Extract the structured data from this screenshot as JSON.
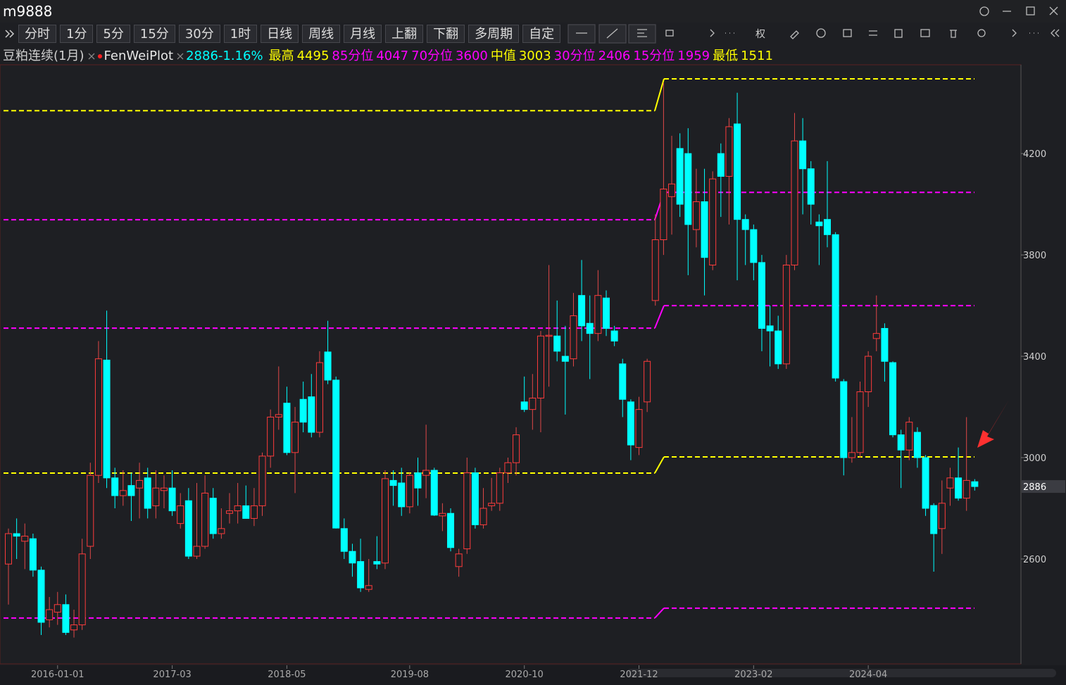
{
  "window": {
    "symbol": "m9888"
  },
  "toolbar": {
    "buttons": [
      "分时",
      "1分",
      "5分",
      "15分",
      "30分",
      "1时",
      "日线",
      "周线",
      "月线",
      "上翻",
      "下翻",
      "多周期",
      "自定"
    ],
    "rights": "权"
  },
  "chart_data": {
    "type": "candlestick",
    "name": "豆粕连续(1月)",
    "indicator": "FenWeiPlot",
    "last": 2886,
    "change": "-1.16%",
    "up_color": "#ff3b3b",
    "down_color": "#00ffff",
    "categories": [
      null,
      null,
      null,
      null,
      null,
      null,
      "2016-01-01",
      null,
      null,
      null,
      null,
      null,
      null,
      null,
      null,
      null,
      null,
      null,
      null,
      null,
      "2017-03",
      null,
      null,
      null,
      null,
      null,
      null,
      null,
      null,
      null,
      null,
      null,
      null,
      null,
      "2018-05",
      null,
      null,
      null,
      null,
      null,
      null,
      null,
      null,
      null,
      null,
      null,
      null,
      null,
      null,
      "2019-08",
      null,
      null,
      null,
      null,
      null,
      null,
      null,
      null,
      null,
      null,
      null,
      null,
      null,
      "2020-10",
      null,
      null,
      null,
      null,
      null,
      null,
      null,
      null,
      null,
      null,
      null,
      null,
      null,
      "2021-12",
      null,
      null,
      null,
      null,
      null,
      null,
      null,
      null,
      null,
      null,
      null,
      null,
      null,
      "2023-02",
      null,
      null,
      null,
      null,
      null,
      null,
      null,
      null,
      null,
      null,
      null,
      null,
      null,
      "2024-04",
      null,
      null,
      null,
      null,
      null,
      null,
      null,
      null,
      null,
      null,
      null,
      null,
      null
    ],
    "candles": [
      [
        2580,
        2720,
        2420,
        2700
      ],
      [
        2700,
        2760,
        2600,
        2690
      ],
      [
        2670,
        2740,
        2560,
        2690
      ],
      [
        2680,
        2700,
        2530,
        2556
      ],
      [
        2556,
        2570,
        2300,
        2350
      ],
      [
        2360,
        2450,
        2330,
        2400
      ],
      [
        2390,
        2470,
        2340,
        2420
      ],
      [
        2420,
        2460,
        2300,
        2310
      ],
      [
        2320,
        2400,
        2290,
        2340
      ],
      [
        2340,
        2680,
        2320,
        2620
      ],
      [
        2650,
        2980,
        2600,
        2930
      ],
      [
        2930,
        3460,
        2900,
        3390
      ],
      [
        3385,
        3580,
        2880,
        2920
      ],
      [
        2920,
        2960,
        2800,
        2850
      ],
      [
        2850,
        2950,
        2810,
        2870
      ],
      [
        2890,
        2940,
        2750,
        2850
      ],
      [
        2880,
        2980,
        2760,
        2910
      ],
      [
        2920,
        2960,
        2760,
        2800
      ],
      [
        2810,
        2950,
        2760,
        2880
      ],
      [
        2870,
        2930,
        2800,
        2880
      ],
      [
        2880,
        2950,
        2770,
        2790
      ],
      [
        2740,
        2860,
        2720,
        2810
      ],
      [
        2830,
        2880,
        2600,
        2611
      ],
      [
        2611,
        2900,
        2600,
        2650
      ],
      [
        2650,
        2930,
        2640,
        2860
      ],
      [
        2840,
        2880,
        2680,
        2700
      ],
      [
        2700,
        2800,
        2680,
        2720
      ],
      [
        2780,
        2860,
        2740,
        2790
      ],
      [
        2790,
        2900,
        2740,
        2810
      ],
      [
        2810,
        2890,
        2760,
        2760
      ],
      [
        2760,
        2880,
        2730,
        2810
      ],
      [
        2810,
        3020,
        2770,
        3006
      ],
      [
        3006,
        3190,
        2960,
        3160
      ],
      [
        3160,
        3360,
        3110,
        3170
      ],
      [
        3215,
        3280,
        3010,
        3020
      ],
      [
        3020,
        3200,
        2860,
        3140
      ],
      [
        3230,
        3300,
        3100,
        3140
      ],
      [
        3240,
        3330,
        3080,
        3100
      ],
      [
        3100,
        3420,
        3080,
        3375
      ],
      [
        3417,
        3540,
        3290,
        3306
      ],
      [
        3306,
        3320,
        2720,
        2722
      ],
      [
        2720,
        2760,
        2600,
        2630
      ],
      [
        2630,
        2660,
        2530,
        2584
      ],
      [
        2590,
        2680,
        2470,
        2486
      ],
      [
        2480,
        2600,
        2470,
        2495
      ],
      [
        2590,
        2690,
        2560,
        2580
      ],
      [
        2584,
        2950,
        2560,
        2917
      ],
      [
        2910,
        2950,
        2810,
        2890
      ],
      [
        2900,
        2960,
        2770,
        2806
      ],
      [
        2806,
        2940,
        2780,
        2930
      ],
      [
        2940,
        3000,
        2810,
        2880
      ],
      [
        2930,
        3130,
        2840,
        2950
      ],
      [
        2950,
        2960,
        2770,
        2773
      ],
      [
        2770,
        2820,
        2710,
        2780
      ],
      [
        2780,
        2800,
        2630,
        2645
      ],
      [
        2570,
        2640,
        2530,
        2620
      ],
      [
        2640,
        3000,
        2620,
        2940
      ],
      [
        2940,
        2960,
        2720,
        2735
      ],
      [
        2735,
        2880,
        2720,
        2800
      ],
      [
        2810,
        2920,
        2790,
        2820
      ],
      [
        2820,
        2960,
        2790,
        2940
      ],
      [
        2940,
        3000,
        2900,
        2980
      ],
      [
        2980,
        3120,
        2930,
        3090
      ],
      [
        3220,
        3320,
        3180,
        3190
      ],
      [
        3190,
        3330,
        3110,
        3235
      ],
      [
        3235,
        3500,
        3100,
        3480
      ],
      [
        3480,
        3760,
        3280,
        3483
      ],
      [
        3480,
        3620,
        3380,
        3420
      ],
      [
        3400,
        3520,
        3170,
        3380
      ],
      [
        3390,
        3650,
        3360,
        3560
      ],
      [
        3640,
        3780,
        3460,
        3520
      ],
      [
        3530,
        3640,
        3310,
        3490
      ],
      [
        3490,
        3740,
        3460,
        3640
      ],
      [
        3630,
        3660,
        3480,
        3510
      ],
      [
        3500,
        3520,
        3440,
        3460
      ],
      [
        3370,
        3390,
        3160,
        3230
      ],
      [
        3220,
        3230,
        2990,
        3050
      ],
      [
        3040,
        3240,
        3010,
        3190
      ],
      [
        3220,
        3390,
        3180,
        3380
      ],
      [
        3620,
        3960,
        3600,
        3860
      ],
      [
        3860,
        4480,
        3800,
        4060
      ],
      [
        4030,
        4270,
        3880,
        4080
      ],
      [
        4220,
        4280,
        3950,
        4000
      ],
      [
        4200,
        4300,
        3720,
        3920
      ],
      [
        3900,
        4140,
        3830,
        4010
      ],
      [
        4010,
        4140,
        3640,
        3790
      ],
      [
        3760,
        4130,
        3740,
        4100
      ],
      [
        4200,
        4240,
        3950,
        4110
      ],
      [
        4110,
        4340,
        3920,
        4306
      ],
      [
        4317,
        4440,
        3700,
        3940
      ],
      [
        3940,
        3960,
        3760,
        3900
      ],
      [
        3900,
        3920,
        3700,
        3770
      ],
      [
        3770,
        3800,
        3420,
        3510
      ],
      [
        3520,
        3600,
        3360,
        3500
      ],
      [
        3500,
        3560,
        3350,
        3370
      ],
      [
        3370,
        3800,
        3350,
        3760
      ],
      [
        3760,
        4360,
        3740,
        4250
      ],
      [
        4250,
        4340,
        3960,
        4140
      ],
      [
        4140,
        4170,
        3920,
        4000
      ],
      [
        3930,
        3960,
        3760,
        3915
      ],
      [
        3940,
        4170,
        3830,
        3880
      ],
      [
        3880,
        3890,
        3300,
        3314
      ],
      [
        3300,
        3310,
        2930,
        3000
      ],
      [
        3000,
        3160,
        2980,
        3020
      ],
      [
        3020,
        3300,
        3000,
        3260
      ],
      [
        3260,
        3420,
        3200,
        3400
      ],
      [
        3470,
        3640,
        3420,
        3490
      ],
      [
        3510,
        3530,
        3300,
        3380
      ],
      [
        3375,
        3380,
        3080,
        3090
      ],
      [
        3090,
        3110,
        2880,
        3030
      ],
      [
        3030,
        3160,
        2990,
        3140
      ],
      [
        3100,
        3120,
        2960,
        3000
      ],
      [
        3000,
        3010,
        2770,
        2800
      ],
      [
        2811,
        2820,
        2550,
        2700
      ],
      [
        2720,
        2910,
        2620,
        2820
      ],
      [
        2880,
        2960,
        2810,
        2920
      ],
      [
        2920,
        3040,
        2830,
        2840
      ],
      [
        2840,
        3160,
        2790,
        2910
      ],
      [
        2905,
        2915,
        2870,
        2886
      ]
    ],
    "levels": [
      {
        "name": "最高",
        "color": "#ffff00",
        "values": [
          4369,
          4495
        ]
      },
      {
        "name": "85分位",
        "color": "#ff00ff",
        "values": [
          3939,
          4047
        ]
      },
      {
        "name": "70分位",
        "color": "#ff00ff",
        "values": [
          3511,
          3600
        ]
      },
      {
        "name": "中值",
        "color": "#ffff00",
        "values": [
          2939,
          3003
        ]
      },
      {
        "name": "30分位",
        "color": "#ff00ff",
        "values": [
          2367,
          2406
        ]
      },
      {
        "name": "15分位",
        "color": "#ff00ff",
        "values": [
          null,
          1959
        ]
      },
      {
        "name": "最低",
        "color": "#ffff00",
        "values": [
          null,
          1511
        ]
      }
    ],
    "ylim": [
      2186,
      4556
    ],
    "yticks": [
      2600,
      3000,
      3400,
      3800,
      4200
    ]
  }
}
